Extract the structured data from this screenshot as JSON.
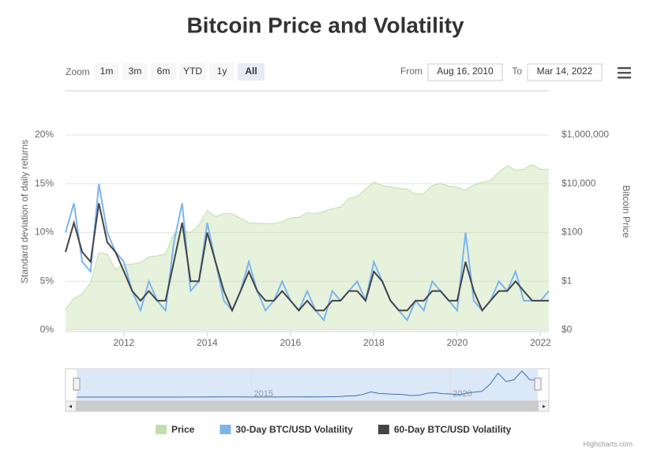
{
  "chart_data": {
    "type": "line",
    "title": "Bitcoin Price and Volatility",
    "y_title": "Standard deviation of daily returns",
    "y2_title": "Bitcoin Price",
    "x": [
      2010.6,
      2010.8,
      2011,
      2011.2,
      2011.4,
      2011.6,
      2011.8,
      2012,
      2012.2,
      2012.4,
      2012.6,
      2012.8,
      2013,
      2013.2,
      2013.4,
      2013.6,
      2013.8,
      2014,
      2014.2,
      2014.4,
      2014.6,
      2014.8,
      2015,
      2015.2,
      2015.4,
      2015.6,
      2015.8,
      2016,
      2016.2,
      2016.4,
      2016.6,
      2016.8,
      2017,
      2017.2,
      2017.4,
      2017.6,
      2017.8,
      2018,
      2018.2,
      2018.4,
      2018.6,
      2018.8,
      2019,
      2019.2,
      2019.4,
      2019.6,
      2019.8,
      2020,
      2020.2,
      2020.4,
      2020.6,
      2020.8,
      2021,
      2021.2,
      2021.4,
      2021.6,
      2021.8,
      2022,
      2022.2
    ],
    "series": [
      {
        "name": "Price",
        "color": "#c0dfa8",
        "axis": "y2",
        "area": true,
        "values": [
          0.07,
          0.2,
          0.3,
          0.9,
          15,
          13,
          3,
          5,
          5,
          6,
          10,
          11,
          13,
          90,
          120,
          100,
          200,
          800,
          450,
          600,
          580,
          380,
          250,
          240,
          230,
          230,
          280,
          400,
          420,
          650,
          600,
          720,
          950,
          1100,
          2500,
          3000,
          6000,
          12000,
          8500,
          7500,
          6500,
          6000,
          3700,
          4000,
          8500,
          10500,
          8000,
          7200,
          5500,
          9000,
          11500,
          13500,
          30000,
          55000,
          36000,
          40000,
          60000,
          40000,
          39000
        ]
      },
      {
        "name": "30-Day BTC/USD Volatility",
        "color": "#7cb5ec",
        "values": [
          10,
          13,
          7,
          6,
          15,
          10,
          8,
          7,
          4,
          2,
          5,
          3,
          2,
          9,
          13,
          4,
          5,
          11,
          7,
          3,
          2,
          4,
          7,
          4,
          2,
          3,
          5,
          3,
          2,
          4,
          2,
          1,
          4,
          3,
          4,
          5,
          3,
          7,
          5,
          3,
          2,
          1,
          3,
          2,
          5,
          4,
          3,
          2,
          10,
          3,
          2,
          3,
          5,
          4,
          6,
          3,
          3,
          3,
          4
        ]
      },
      {
        "name": "60-Day BTC/USD Volatility",
        "color": "#434348",
        "values": [
          8,
          11,
          8,
          7,
          13,
          9,
          8,
          6,
          4,
          3,
          4,
          3,
          3,
          7,
          11,
          5,
          5,
          10,
          7,
          4,
          2,
          4,
          6,
          4,
          3,
          3,
          4,
          3,
          2,
          3,
          2,
          2,
          3,
          3,
          4,
          4,
          3,
          6,
          5,
          3,
          2,
          2,
          3,
          3,
          4,
          4,
          3,
          3,
          7,
          4,
          2,
          3,
          4,
          4,
          5,
          4,
          3,
          3,
          3
        ]
      }
    ],
    "xlim": [
      2010.6,
      2022.2
    ],
    "xticks": [
      2012,
      2014,
      2016,
      2018,
      2020,
      2022
    ],
    "ylim": [
      0,
      20
    ],
    "yticks": [
      {
        "value": 0,
        "label": "0%"
      },
      {
        "value": 5,
        "label": "5%"
      },
      {
        "value": 10,
        "label": "10%"
      },
      {
        "value": 15,
        "label": "15%"
      },
      {
        "value": 20,
        "label": "20%"
      }
    ],
    "y2lim": [
      0.01,
      1000000
    ],
    "y2_log": true,
    "y2ticks": [
      {
        "value": 0.01,
        "label": "$0"
      },
      {
        "value": 1,
        "label": "$1"
      },
      {
        "value": 100,
        "label": "$100"
      },
      {
        "value": 10000,
        "label": "$10,000"
      },
      {
        "value": 1000000,
        "label": "$1,000,000"
      }
    ],
    "grid": true,
    "navigator_xticks": [
      2015,
      2020
    ],
    "range_selector": {
      "zoom_label": "Zoom",
      "buttons": [
        "1m",
        "3m",
        "6m",
        "YTD",
        "1y",
        "All"
      ],
      "from_label": "From",
      "from": "Aug 16, 2010",
      "to_label": "To",
      "to": "Mar 14, 2022"
    },
    "credits": "Highcharts.com"
  }
}
